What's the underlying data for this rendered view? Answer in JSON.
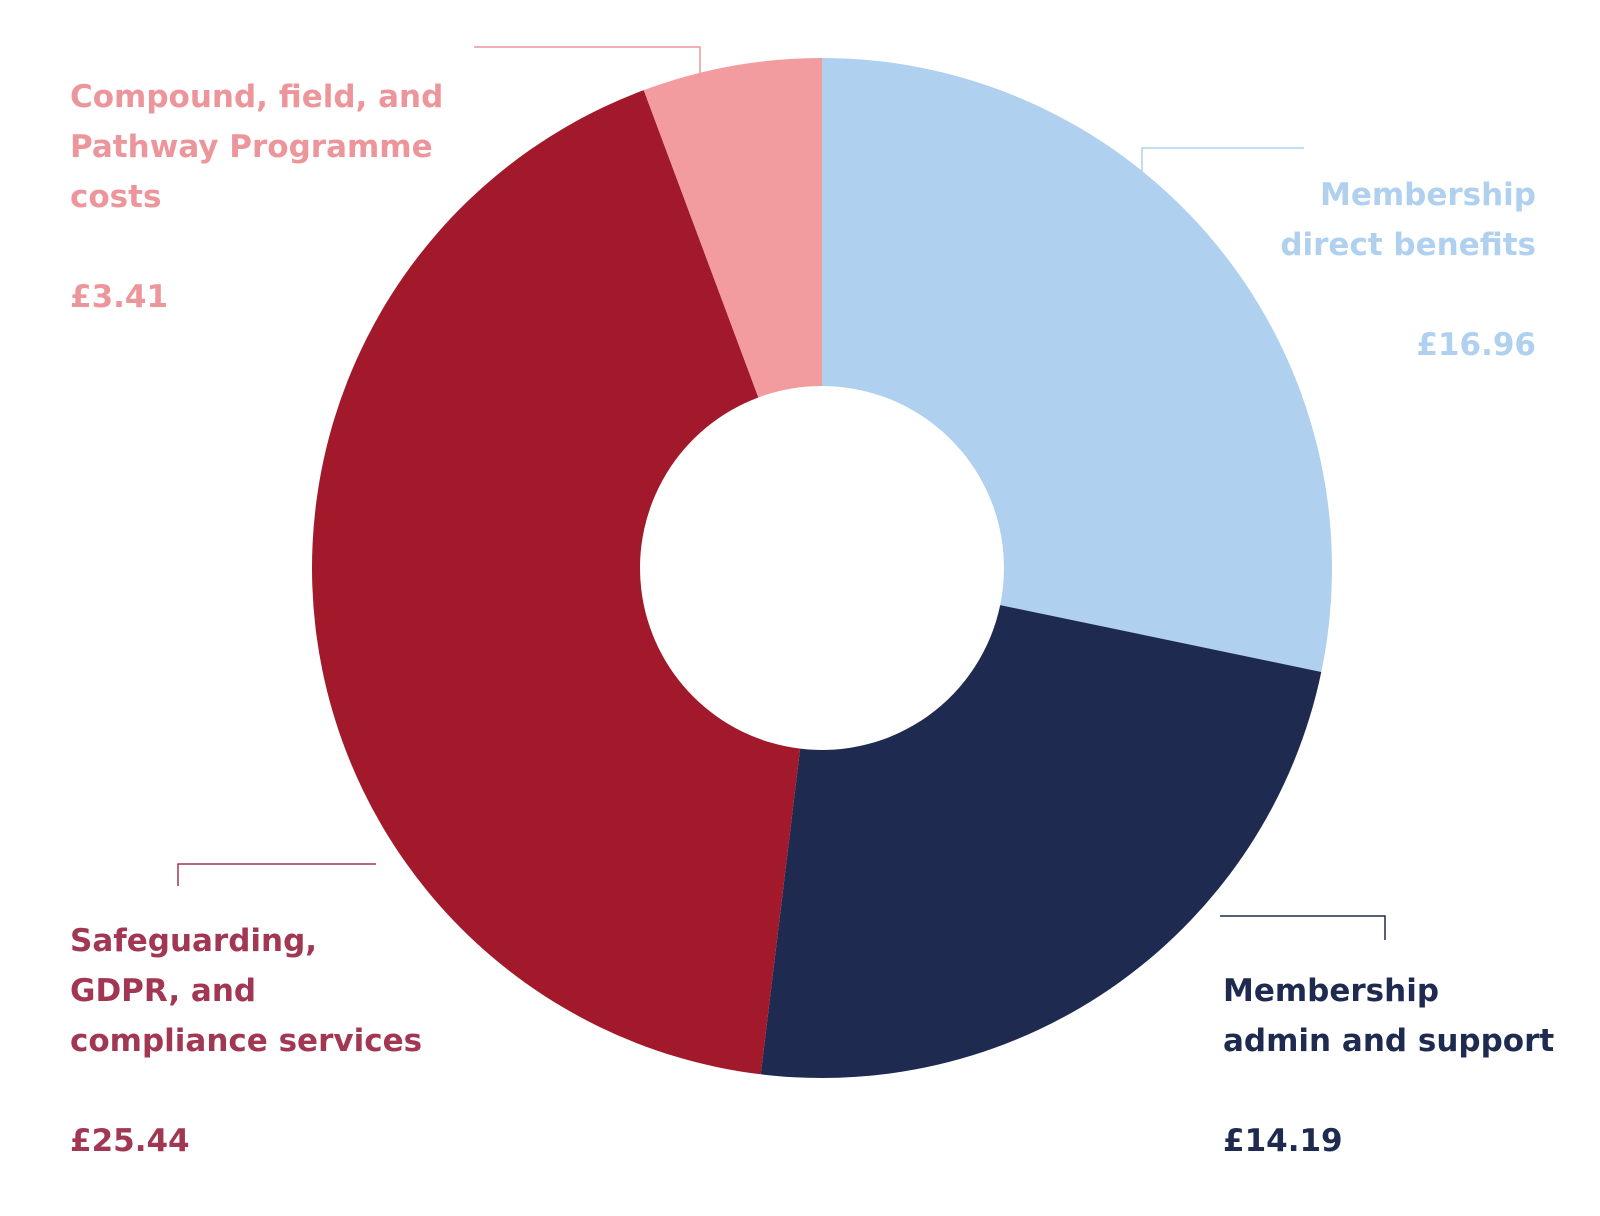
{
  "chart_data": {
    "type": "pie",
    "donut": true,
    "start": "top",
    "direction": "clockwise",
    "slices": [
      {
        "label": "Membership\ndirect benefits",
        "value_text": "£16.96",
        "value": 16.96,
        "color": "#afd0ee"
      },
      {
        "label": "Membership\nadmin and support",
        "value_text": "£14.19",
        "value": 14.19,
        "color": "#1f2a50"
      },
      {
        "label": "Safeguarding,\nGDPR, and\ncompliance services",
        "value_text": "£25.44",
        "value": 25.44,
        "color": "#a1192a"
      },
      {
        "label": "Compound, field, and\nPathway Programme\ncosts",
        "value_text": "£3.41",
        "value": 3.41,
        "color": "#f29ca0"
      }
    ],
    "label_colors": [
      "#afd0ee",
      "#1f2a50",
      "#a23754",
      "#ec969c"
    ]
  }
}
